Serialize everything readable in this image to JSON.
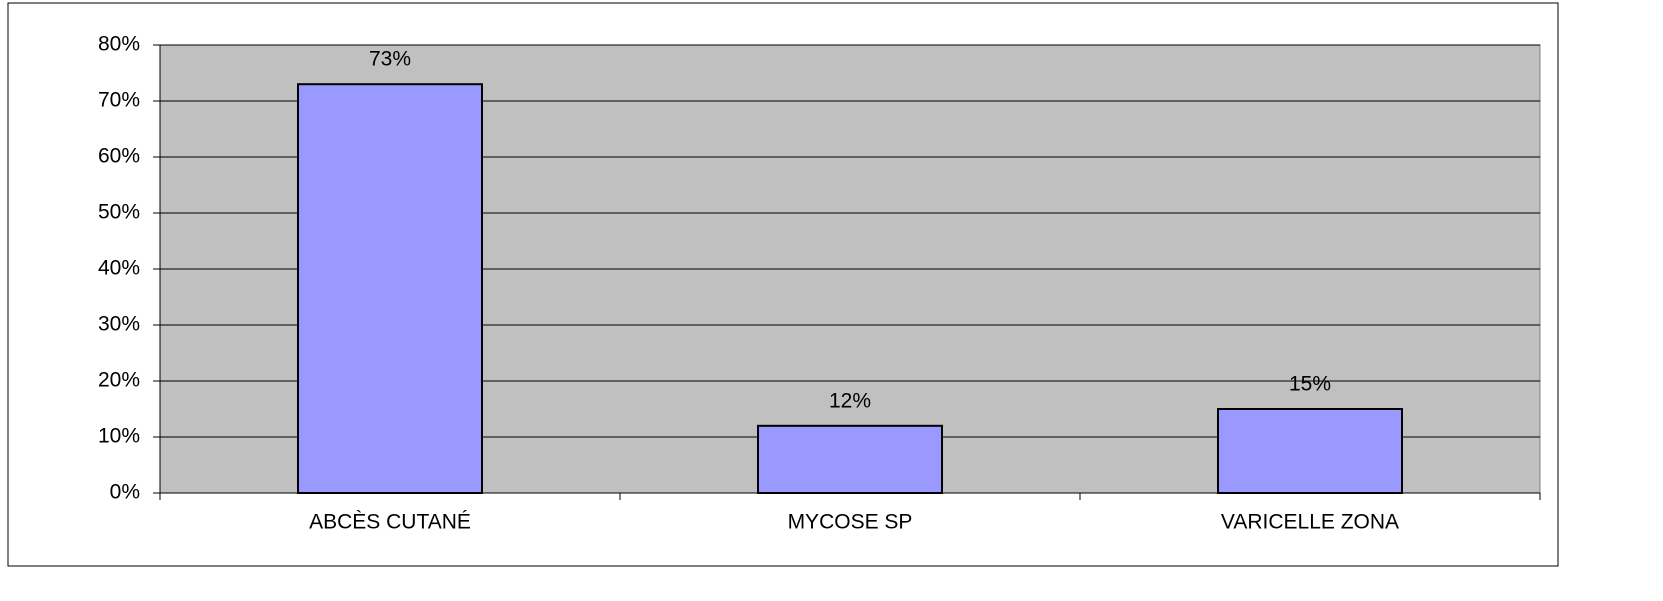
{
  "chart_data": {
    "type": "bar",
    "categories": [
      "ABCÈS CUTANÉ",
      "MYCOSE SP",
      "VARICELLE ZONA"
    ],
    "values": [
      73,
      12,
      15
    ],
    "value_labels": [
      "73%",
      "12%",
      "15%"
    ],
    "color": "#9999ff",
    "ylim": [
      0,
      80
    ],
    "yticks": [
      {
        "value": 0,
        "label": "0%"
      },
      {
        "value": 10,
        "label": "10%"
      },
      {
        "value": 20,
        "label": "20%"
      },
      {
        "value": 30,
        "label": "30%"
      },
      {
        "value": 40,
        "label": "40%"
      },
      {
        "value": 50,
        "label": "50%"
      },
      {
        "value": 60,
        "label": "60%"
      },
      {
        "value": 70,
        "label": "70%"
      },
      {
        "value": 80,
        "label": "80%"
      }
    ],
    "grid": true
  }
}
